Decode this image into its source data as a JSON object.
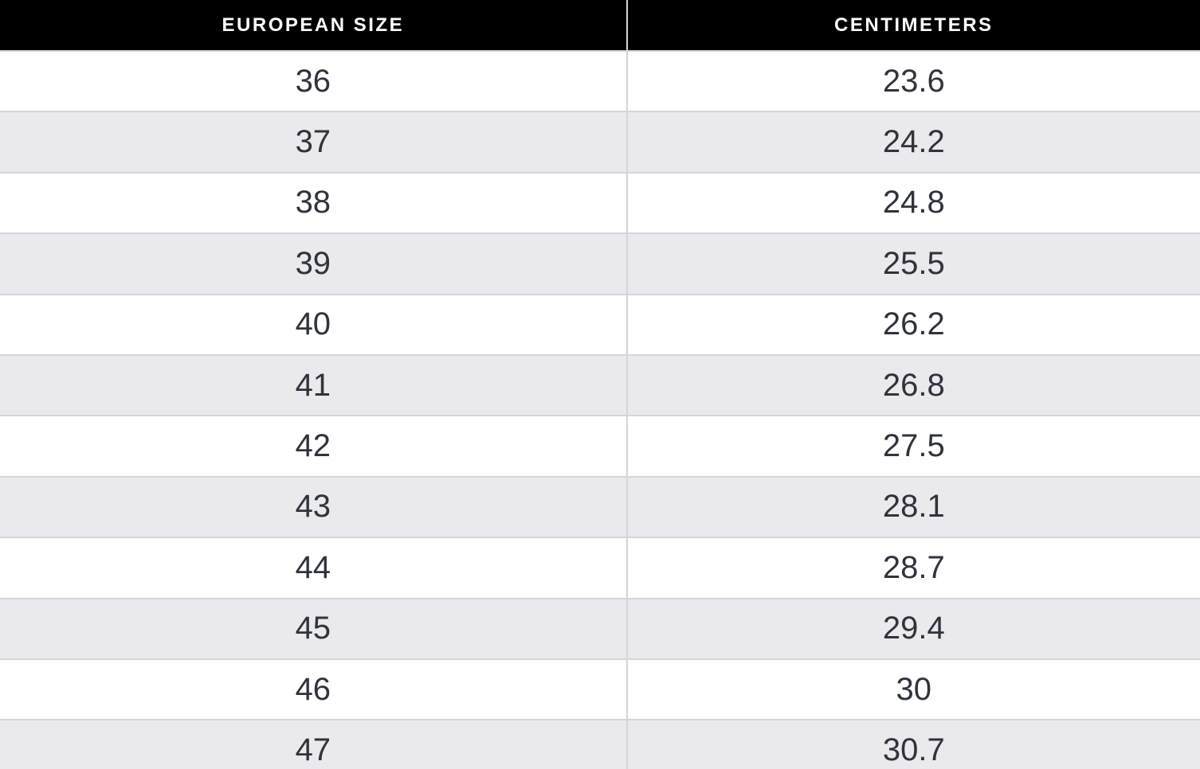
{
  "table": {
    "headers": [
      {
        "label": "EUROPEAN SIZE"
      },
      {
        "label": "CENTIMETERS"
      }
    ],
    "rows": [
      {
        "eu": "36",
        "cm": "23.6"
      },
      {
        "eu": "37",
        "cm": "24.2"
      },
      {
        "eu": "38",
        "cm": "24.8"
      },
      {
        "eu": "39",
        "cm": "25.5"
      },
      {
        "eu": "40",
        "cm": "26.2"
      },
      {
        "eu": "41",
        "cm": "26.8"
      },
      {
        "eu": "42",
        "cm": "27.5"
      },
      {
        "eu": "43",
        "cm": "28.1"
      },
      {
        "eu": "44",
        "cm": "28.7"
      },
      {
        "eu": "45",
        "cm": "29.4"
      },
      {
        "eu": "46",
        "cm": "30"
      },
      {
        "eu": "47",
        "cm": "30.7"
      }
    ]
  },
  "colors": {
    "header_background": "#000000",
    "header_text": "#ffffff",
    "row_white": "#ffffff",
    "row_gray": "#eae9eb",
    "divider": "#d6d4d7",
    "cell_text": "#2f333c"
  },
  "chart_data": {
    "type": "table",
    "title": "European shoe size to centimeters conversion",
    "columns": [
      "EUROPEAN SIZE",
      "CENTIMETERS"
    ],
    "rows": [
      [
        36,
        23.6
      ],
      [
        37,
        24.2
      ],
      [
        38,
        24.8
      ],
      [
        39,
        25.5
      ],
      [
        40,
        26.2
      ],
      [
        41,
        26.8
      ],
      [
        42,
        27.5
      ],
      [
        43,
        28.1
      ],
      [
        44,
        28.7
      ],
      [
        45,
        29.4
      ],
      [
        46,
        30
      ],
      [
        47,
        30.7
      ]
    ],
    "layout": {
      "zebra_striping": true,
      "first_data_row_background": "#ffffff",
      "last_row_clipped": true
    }
  }
}
